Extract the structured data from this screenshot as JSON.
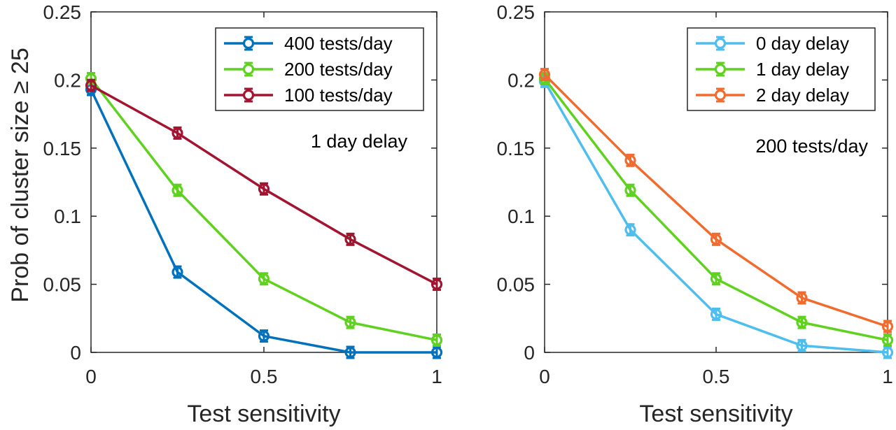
{
  "chart_data": [
    {
      "type": "line",
      "ylabel": "Prob of cluster size ≥ 25",
      "xlabel": "Test sensitivity",
      "xlim": [
        0,
        1
      ],
      "ylim": [
        0,
        0.25
      ],
      "xticks": [
        0,
        0.5,
        1
      ],
      "xtick_labels": [
        "0",
        "0.5",
        "1"
      ],
      "yticks": [
        0,
        0.05,
        0.1,
        0.15,
        0.2,
        0.25
      ],
      "ytick_labels": [
        "0",
        "0.05",
        "0.1",
        "0.15",
        "0.2",
        "0.25"
      ],
      "x": [
        0,
        0.25,
        0.5,
        0.75,
        1
      ],
      "legend_position": "top-right",
      "annotation": "1 day delay",
      "grid": false,
      "series": [
        {
          "name": "400 tests/day",
          "color": "#0072bd",
          "values": [
            0.193,
            0.059,
            0.012,
            0.0,
            0.0
          ]
        },
        {
          "name": "200 tests/day",
          "color": "#5fd11f",
          "values": [
            0.201,
            0.119,
            0.054,
            0.022,
            0.009
          ]
        },
        {
          "name": "100 tests/day",
          "color": "#a2142f",
          "values": [
            0.196,
            0.161,
            0.12,
            0.083,
            0.05
          ]
        }
      ]
    },
    {
      "type": "line",
      "xlabel": "Test sensitivity",
      "xlim": [
        0,
        1
      ],
      "ylim": [
        0,
        0.25
      ],
      "xticks": [
        0,
        0.5,
        1
      ],
      "xtick_labels": [
        "0",
        "0.5",
        "1"
      ],
      "yticks": [
        0,
        0.05,
        0.1,
        0.15,
        0.2,
        0.25
      ],
      "ytick_labels": [
        "0",
        "0.05",
        "0.1",
        "0.15",
        "0.2",
        "0.25"
      ],
      "x": [
        0,
        0.25,
        0.5,
        0.75,
        1
      ],
      "legend_position": "top-right",
      "annotation": "200 tests/day",
      "grid": false,
      "series": [
        {
          "name": "0 day delay",
          "color": "#4dbeee",
          "values": [
            0.199,
            0.09,
            0.028,
            0.005,
            0.0
          ]
        },
        {
          "name": "1 day delay",
          "color": "#5fd11f",
          "values": [
            0.201,
            0.119,
            0.054,
            0.022,
            0.009
          ]
        },
        {
          "name": "2 day delay",
          "color": "#f26b2e",
          "values": [
            0.204,
            0.141,
            0.083,
            0.04,
            0.019
          ]
        }
      ]
    }
  ]
}
